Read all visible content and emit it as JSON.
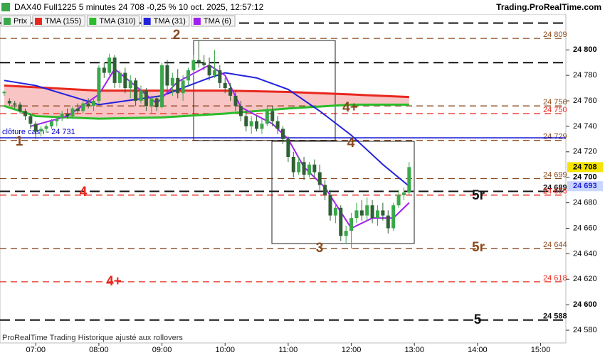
{
  "header": {
    "title": "DAX40 Full1225 5 minutes 24 708 -0,25 % 10 oct. 2025, 12:57:12",
    "site": "Trading.ProRealTime.com"
  },
  "footer": "ProRealTime Trading  Historique ajusté aux rollovers",
  "chart_data": {
    "type": "candlestick",
    "price_name": "Prix",
    "up_color": "#3aa84a",
    "down_color": "#2f5f35",
    "x": [
      "06:30",
      "06:35",
      "06:40",
      "06:45",
      "06:50",
      "06:55",
      "07:00",
      "07:05",
      "07:10",
      "07:15",
      "07:20",
      "07:25",
      "07:30",
      "07:35",
      "07:40",
      "07:45",
      "07:50",
      "07:55",
      "08:00",
      "08:05",
      "08:10",
      "08:15",
      "08:20",
      "08:25",
      "08:30",
      "08:35",
      "08:40",
      "08:45",
      "08:50",
      "08:55",
      "09:00",
      "09:05",
      "09:10",
      "09:15",
      "09:20",
      "09:25",
      "09:30",
      "09:35",
      "09:40",
      "09:45",
      "09:50",
      "09:55",
      "10:00",
      "10:05",
      "10:10",
      "10:15",
      "10:20",
      "10:25",
      "10:30",
      "10:35",
      "10:40",
      "10:45",
      "10:50",
      "10:55",
      "11:00",
      "11:05",
      "11:10",
      "11:15",
      "11:20",
      "11:25",
      "11:30",
      "11:35",
      "11:40",
      "11:45",
      "11:50",
      "11:55",
      "12:00",
      "12:05",
      "12:10",
      "12:15",
      "12:20",
      "12:25",
      "12:30",
      "12:35",
      "12:40",
      "12:45",
      "12:50",
      "12:55"
    ],
    "open": [
      24766,
      24760,
      24758,
      24757,
      24752,
      24748,
      24742,
      24736,
      24738,
      24740,
      24744,
      24746,
      24750,
      24748,
      24754,
      24752,
      24758,
      24756,
      24760,
      24786,
      24782,
      24794,
      24774,
      24782,
      24770,
      24776,
      24760,
      24768,
      24756,
      24762,
      24755,
      24788,
      24772,
      24778,
      24766,
      24776,
      24784,
      24792,
      24790,
      24788,
      24780,
      24784,
      24774,
      24770,
      24764,
      24756,
      24748,
      24740,
      24744,
      24738,
      24742,
      24752,
      24744,
      24738,
      24730,
      24716,
      24704,
      24712,
      24702,
      24710,
      24704,
      24694,
      24686,
      24670,
      24676,
      24654,
      24658,
      24668,
      24674,
      24670,
      24678,
      24668,
      24674,
      24670,
      24660,
      24678,
      24686,
      24688
    ],
    "high": [
      24768,
      24762,
      24760,
      24759,
      24754,
      24750,
      24744,
      24740,
      24742,
      24746,
      24748,
      24752,
      24754,
      24756,
      24758,
      24760,
      24762,
      24762,
      24788,
      24790,
      24797,
      24796,
      24784,
      24786,
      24780,
      24778,
      24772,
      24770,
      24764,
      24764,
      24790,
      24792,
      24782,
      24785,
      24780,
      24786,
      24796,
      24807,
      24796,
      24794,
      24800,
      24788,
      24778,
      24774,
      24768,
      24760,
      24752,
      24748,
      24748,
      24746,
      24756,
      24756,
      24748,
      24740,
      24732,
      24720,
      24716,
      24716,
      24712,
      24714,
      24710,
      24698,
      24690,
      24680,
      24678,
      24662,
      24672,
      24680,
      24682,
      24684,
      24682,
      24678,
      24680,
      24674,
      24680,
      24690,
      24692,
      24712
    ],
    "low": [
      24764,
      24756,
      24754,
      24750,
      24745,
      24738,
      24730,
      24732,
      24735,
      24738,
      24740,
      24744,
      24746,
      24746,
      24750,
      24750,
      24754,
      24752,
      24758,
      24778,
      24780,
      24770,
      24770,
      24766,
      24762,
      24756,
      24758,
      24752,
      24750,
      24752,
      24754,
      24768,
      24764,
      24762,
      24760,
      24772,
      24780,
      24786,
      24784,
      24776,
      24778,
      24770,
      24766,
      24760,
      24752,
      24744,
      24736,
      24734,
      24736,
      24734,
      24740,
      24740,
      24734,
      24726,
      24712,
      24700,
      24702,
      24698,
      24700,
      24700,
      24690,
      24682,
      24666,
      24664,
      24650,
      24648,
      24644,
      24664,
      24666,
      24666,
      24664,
      24662,
      24666,
      24656,
      24658,
      24676,
      24682,
      24686
    ],
    "close": [
      24767,
      24758,
      24757,
      24752,
      24748,
      24742,
      24736,
      24738,
      24740,
      24744,
      24746,
      24750,
      24748,
      24754,
      24752,
      24758,
      24756,
      24760,
      24786,
      24782,
      24794,
      24774,
      24782,
      24770,
      24776,
      24760,
      24768,
      24756,
      24762,
      24755,
      24788,
      24772,
      24778,
      24766,
      24776,
      24784,
      24792,
      24790,
      24788,
      24780,
      24784,
      24774,
      24770,
      24764,
      24756,
      24748,
      24740,
      24744,
      24738,
      24742,
      24752,
      24744,
      24738,
      24730,
      24716,
      24704,
      24712,
      24702,
      24710,
      24704,
      24694,
      24686,
      24670,
      24676,
      24654,
      24658,
      24668,
      24674,
      24670,
      24678,
      24668,
      24674,
      24670,
      24660,
      24678,
      24686,
      24688,
      24708
    ],
    "series": [
      {
        "name": "TMA (155)",
        "color": "#e8281e",
        "x": [
          "06:30",
          "08:00",
          "10:00",
          "11:00",
          "12:00",
          "12:55"
        ],
        "values": [
          24772,
          24768,
          24768,
          24767,
          24765,
          24763
        ]
      },
      {
        "name": "TMA (310)",
        "color": "#2bbd2b",
        "x": [
          "06:30",
          "07:00",
          "08:00",
          "09:00",
          "10:00",
          "11:00",
          "12:00",
          "12:55"
        ],
        "values": [
          24756,
          24748,
          24746,
          24747,
          24750,
          24754,
          24757,
          24757
        ]
      },
      {
        "name": "TMA (31)",
        "color": "#2222dd",
        "x": [
          "06:30",
          "07:00",
          "08:00",
          "09:00",
          "09:45",
          "10:00",
          "10:30",
          "11:00",
          "11:30",
          "12:00",
          "12:30",
          "12:55"
        ],
        "values": [
          24776,
          24772,
          24757,
          24764,
          24778,
          24782,
          24778,
          24769,
          24752,
          24733,
          24710,
          24693
        ]
      },
      {
        "name": "TMA (6)",
        "color": "#a020f0",
        "x": [
          "06:55",
          "07:30",
          "08:00",
          "08:15",
          "08:30",
          "08:55",
          "09:15",
          "09:45",
          "10:00",
          "10:15",
          "10:45",
          "11:00",
          "11:15",
          "11:35",
          "12:00",
          "12:20",
          "12:40",
          "12:55"
        ],
        "values": [
          24740,
          24748,
          24765,
          24785,
          24775,
          24758,
          24775,
          24788,
          24780,
          24755,
          24742,
          24730,
          24708,
          24692,
          24660,
          24668,
          24668,
          24680
        ]
      }
    ],
    "levels": [
      {
        "value": 24821,
        "color": "#111111"
      },
      {
        "value": 24809,
        "label": "24 809",
        "color": "#8b4a1c"
      },
      {
        "value": 24790,
        "color": "#111111"
      },
      {
        "value": 24756,
        "label": "24 756",
        "color": "#8b4a1c"
      },
      {
        "value": 24750,
        "label": "24 750",
        "color": "#e8281e"
      },
      {
        "value": 24729,
        "label": "24 729",
        "color": "#8b4a1c"
      },
      {
        "value": 24699,
        "label": "24 699",
        "color": "#8b4a1c"
      },
      {
        "value": 24689,
        "label": "24 689",
        "color": "#111111"
      },
      {
        "value": 24686,
        "label": "24 686",
        "color": "#e8281e"
      },
      {
        "value": 24644,
        "label": "24 644",
        "color": "#8b4a1c"
      },
      {
        "value": 24618,
        "label": "24 618",
        "color": "#e8281e"
      },
      {
        "value": 24588,
        "label": "24 588",
        "color": "#111111"
      }
    ],
    "close_line": {
      "value": 24731,
      "label": "clôture cash -  24 731",
      "color": "#0000cc"
    },
    "markers": [
      {
        "value": 24708,
        "label": "24 708",
        "color": "#f5e400",
        "text_color": "#000000"
      },
      {
        "value": 24693,
        "label": "24 693",
        "color": "#c9d6ff",
        "text_color": "#2222dd"
      }
    ],
    "annotations": [
      {
        "text": "2",
        "color": "#8b4a1c"
      },
      {
        "text": "1",
        "color": "#8b4a1c"
      },
      {
        "text": "4",
        "color": "#e8281e"
      },
      {
        "text": "4+",
        "color": "#8b4a1c"
      },
      {
        "text": "4",
        "color": "#8b4a1c"
      },
      {
        "text": "3",
        "color": "#8b4a1c"
      },
      {
        "text": "5r",
        "color": "#111111"
      },
      {
        "text": "5r",
        "color": "#8b4a1c"
      },
      {
        "text": "4+",
        "color": "#e8281e"
      },
      {
        "text": "5",
        "color": "#111111"
      }
    ],
    "xlim": [
      "06:26",
      "15:24"
    ],
    "xticks": [
      "07:00",
      "08:00",
      "09:00",
      "10:00",
      "11:00",
      "12:00",
      "13:00",
      "14:00",
      "15:00"
    ],
    "ylim": [
      24570,
      24828
    ],
    "yticks": [
      {
        "value": 24580,
        "label": "24 580"
      },
      {
        "value": 24600,
        "label": "24 600"
      },
      {
        "value": 24620,
        "label": "24 620"
      },
      {
        "value": 24640,
        "label": "24 640"
      },
      {
        "value": 24660,
        "label": "24 660"
      },
      {
        "value": 24680,
        "label": "24 680"
      },
      {
        "value": 24700,
        "label": "24 700"
      },
      {
        "value": 24720,
        "label": "24 720"
      },
      {
        "value": 24740,
        "label": "24 740"
      },
      {
        "value": 24760,
        "label": "24 760"
      },
      {
        "value": 24780,
        "label": "24 780"
      },
      {
        "value": 24800,
        "label": "24 800"
      }
    ]
  }
}
